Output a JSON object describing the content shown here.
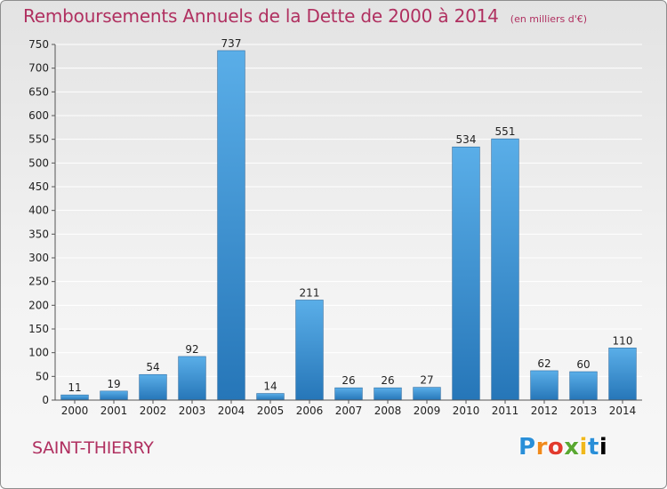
{
  "header": {
    "title": "Remboursements Annuels de la Dette de 2000 à 2014",
    "unit": "(en milliers d'€)"
  },
  "footer": {
    "commune": "SAINT-THIERRY",
    "logo_text": "Proxiti"
  },
  "colors": {
    "bar_light": "#5aaee8",
    "bar_dark": "#2676b8",
    "title": "#b03060",
    "grid": "#ffffff",
    "axis_text": "#222222"
  },
  "chart_data": {
    "type": "bar",
    "categories": [
      "2000",
      "2001",
      "2002",
      "2003",
      "2004",
      "2005",
      "2006",
      "2007",
      "2008",
      "2009",
      "2010",
      "2011",
      "2012",
      "2013",
      "2014"
    ],
    "values": [
      11,
      19,
      54,
      92,
      737,
      14,
      211,
      26,
      26,
      27,
      534,
      551,
      62,
      60,
      110
    ],
    "data_labels": [
      "11",
      "19",
      "54",
      "92",
      "737",
      "14",
      "211",
      "26",
      "26",
      "27",
      "534",
      "551",
      "62",
      "60",
      "110"
    ],
    "ylim": [
      0,
      750
    ],
    "yticks": [
      0,
      50,
      100,
      150,
      200,
      250,
      300,
      350,
      400,
      450,
      500,
      550,
      600,
      650,
      700,
      750
    ],
    "grid": true,
    "legend": "none"
  }
}
